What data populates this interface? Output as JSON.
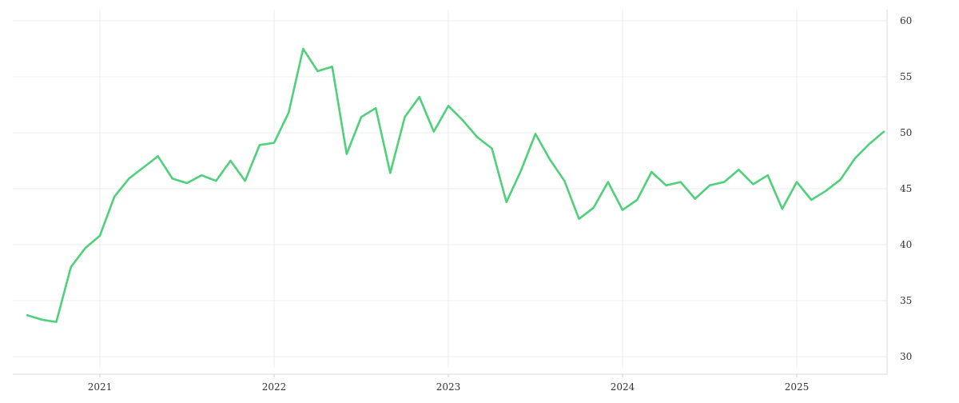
{
  "chart_data": {
    "type": "line",
    "title": "",
    "xlabel": "",
    "ylabel": "",
    "x_ticks": [
      "2021",
      "2022",
      "2023",
      "2024",
      "2025"
    ],
    "y_ticks": [
      30,
      35,
      40,
      45,
      50,
      55,
      60
    ],
    "ylim": [
      29,
      61
    ],
    "xlim": [
      "2020-07",
      "2025-07"
    ],
    "grid": true,
    "y_axis_side": "right",
    "series": [
      {
        "color": "#4fd07a",
        "x": [
          "2020-08",
          "2020-09",
          "2020-10",
          "2020-11",
          "2020-12",
          "2021-01",
          "2021-02",
          "2021-03",
          "2021-04",
          "2021-05",
          "2021-06",
          "2021-07",
          "2021-08",
          "2021-09",
          "2021-10",
          "2021-11",
          "2021-12",
          "2022-01",
          "2022-02",
          "2022-03",
          "2022-04",
          "2022-05",
          "2022-06",
          "2022-07",
          "2022-08",
          "2022-09",
          "2022-10",
          "2022-11",
          "2022-12",
          "2023-01",
          "2023-02",
          "2023-03",
          "2023-04",
          "2023-05",
          "2023-06",
          "2023-07",
          "2023-08",
          "2023-09",
          "2023-10",
          "2023-11",
          "2023-12",
          "2024-01",
          "2024-02",
          "2024-03",
          "2024-04",
          "2024-05",
          "2024-06",
          "2024-07",
          "2024-08",
          "2024-09",
          "2024-10",
          "2024-11",
          "2024-12",
          "2025-01",
          "2025-02",
          "2025-03",
          "2025-04",
          "2025-05",
          "2025-06",
          "2025-07"
        ],
        "values": [
          33.7,
          33.3,
          33.1,
          38.0,
          39.7,
          40.8,
          44.3,
          45.9,
          46.9,
          47.9,
          45.9,
          45.5,
          46.2,
          45.7,
          47.5,
          45.7,
          48.9,
          49.1,
          51.8,
          57.5,
          55.5,
          55.9,
          48.1,
          51.4,
          52.2,
          46.4,
          51.4,
          53.2,
          50.1,
          52.4,
          51.1,
          49.6,
          48.6,
          43.8,
          46.6,
          49.9,
          47.6,
          45.7,
          42.3,
          43.3,
          45.6,
          43.1,
          44.0,
          46.5,
          45.3,
          45.6,
          44.1,
          45.3,
          45.6,
          46.7,
          45.4,
          46.2,
          43.2,
          45.6,
          44.0,
          44.8,
          45.8,
          47.7,
          49.0,
          50.1
        ]
      }
    ]
  }
}
